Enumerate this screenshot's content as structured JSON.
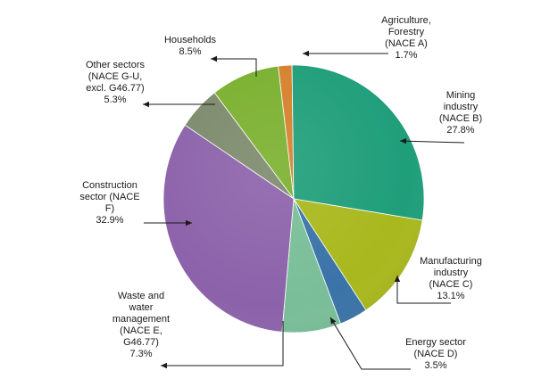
{
  "chart_data": {
    "type": "pie",
    "title": "",
    "unit": "%",
    "slices": [
      {
        "name": "agriculture",
        "label_lines": [
          "Agriculture,",
          "Forestry",
          "(NACE A)"
        ],
        "value_label": "1.7%",
        "value": 1.7,
        "color": "#d6802c"
      },
      {
        "name": "mining",
        "label_lines": [
          "Mining",
          "industry",
          "(NACE B)"
        ],
        "value_label": "27.8%",
        "value": 27.8,
        "color": "#1f9e7a"
      },
      {
        "name": "manufacturing",
        "label_lines": [
          "Manufacturing",
          "industry",
          "(NACE C)"
        ],
        "value_label": "13.1%",
        "value": 13.1,
        "color": "#a9b81d"
      },
      {
        "name": "energy",
        "label_lines": [
          "Energy sector",
          "(NACE D)"
        ],
        "value_label": "3.5%",
        "value": 3.5,
        "color": "#3a73a8"
      },
      {
        "name": "waste-water",
        "label_lines": [
          "Waste and",
          "water",
          "management",
          "(NACE E,",
          "G46.77)"
        ],
        "value_label": "7.3%",
        "value": 7.3,
        "color": "#79be98"
      },
      {
        "name": "construction",
        "label_lines": [
          "Construction",
          "sector (NACE",
          "F)"
        ],
        "value_label": "32.9%",
        "value": 32.9,
        "color": "#8c62aa"
      },
      {
        "name": "other-sectors",
        "label_lines": [
          "Other sectors",
          "(NACE G-U,",
          "excl. G46.77)"
        ],
        "value_label": "5.3%",
        "value": 5.3,
        "color": "#7c8a6c"
      },
      {
        "name": "households",
        "label_lines": [
          "Households"
        ],
        "value_label": "8.5%",
        "value": 8.5,
        "color": "#7ab02e"
      }
    ]
  }
}
